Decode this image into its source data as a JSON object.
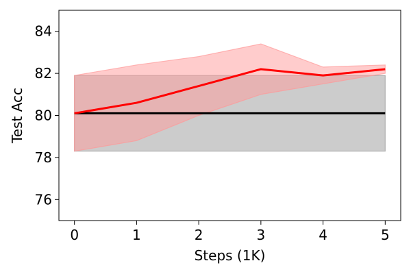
{
  "chart_data": {
    "type": "line",
    "xlabel": "Steps (1K)",
    "ylabel": "Test Acc",
    "xlim": [
      -0.25,
      5.25
    ],
    "ylim": [
      75,
      85
    ],
    "x_ticks": [
      0,
      1,
      2,
      3,
      4,
      5
    ],
    "y_ticks": [
      76,
      78,
      80,
      82,
      84
    ],
    "grid": false,
    "x": [
      0,
      1,
      2,
      3,
      4,
      5
    ],
    "series": [
      {
        "values": [
          80.1,
          80.1,
          80.1,
          80.1,
          80.1,
          80.1
        ],
        "lower": [
          78.3,
          78.3,
          78.3,
          78.3,
          78.3,
          78.3
        ],
        "upper": [
          81.9,
          81.9,
          81.9,
          81.9,
          81.9,
          81.9
        ],
        "color": "#000000",
        "band_color": "#999999"
      },
      {
        "values": [
          80.1,
          80.6,
          81.4,
          82.2,
          81.9,
          82.2
        ],
        "lower": [
          78.3,
          78.8,
          80.0,
          81.0,
          81.5,
          82.0
        ],
        "upper": [
          81.9,
          82.4,
          82.8,
          83.4,
          82.3,
          82.4
        ],
        "color": "#ff0000",
        "band_color": "#ff9999"
      }
    ]
  }
}
